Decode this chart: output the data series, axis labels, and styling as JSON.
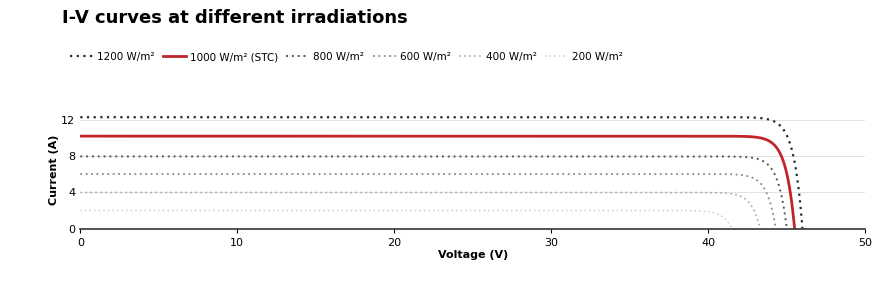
{
  "title": "I-V curves at different irradiations",
  "xlabel": "Voltage (V)",
  "ylabel": "Current (A)",
  "xlim": [
    0,
    50
  ],
  "ylim": [
    0,
    13
  ],
  "yticks": [
    0,
    4,
    8,
    12
  ],
  "xticks": [
    0,
    10,
    20,
    30,
    40,
    50
  ],
  "curves": [
    {
      "label": "1200 W/m²",
      "isc": 12.35,
      "voc": 46.0,
      "n": 0.55,
      "style": "dotted",
      "color": "#2a2a2a",
      "lw": 1.6
    },
    {
      "label": "1000 W/m² (STC)",
      "isc": 10.25,
      "voc": 45.5,
      "n": 0.55,
      "style": "solid",
      "color": "#c0252a",
      "lw": 2.0
    },
    {
      "label": "800 W/m²",
      "isc": 8.0,
      "voc": 45.0,
      "n": 0.55,
      "style": "dotted",
      "color": "#555555",
      "lw": 1.4
    },
    {
      "label": "600 W/m²",
      "isc": 6.05,
      "voc": 44.3,
      "n": 0.55,
      "style": "dotted",
      "color": "#888888",
      "lw": 1.3
    },
    {
      "label": "400 W/m²",
      "isc": 4.0,
      "voc": 43.3,
      "n": 0.55,
      "style": "dotted",
      "color": "#aaaaaa",
      "lw": 1.2
    },
    {
      "label": "200 W/m²",
      "isc": 2.0,
      "voc": 41.5,
      "n": 0.55,
      "style": "dotted",
      "color": "#cccccc",
      "lw": 1.1
    }
  ],
  "background_color": "#ffffff",
  "title_fontsize": 13,
  "legend_fontsize": 7.5,
  "axis_label_fontsize": 8,
  "tick_fontsize": 8,
  "grid_color": "#dddddd"
}
